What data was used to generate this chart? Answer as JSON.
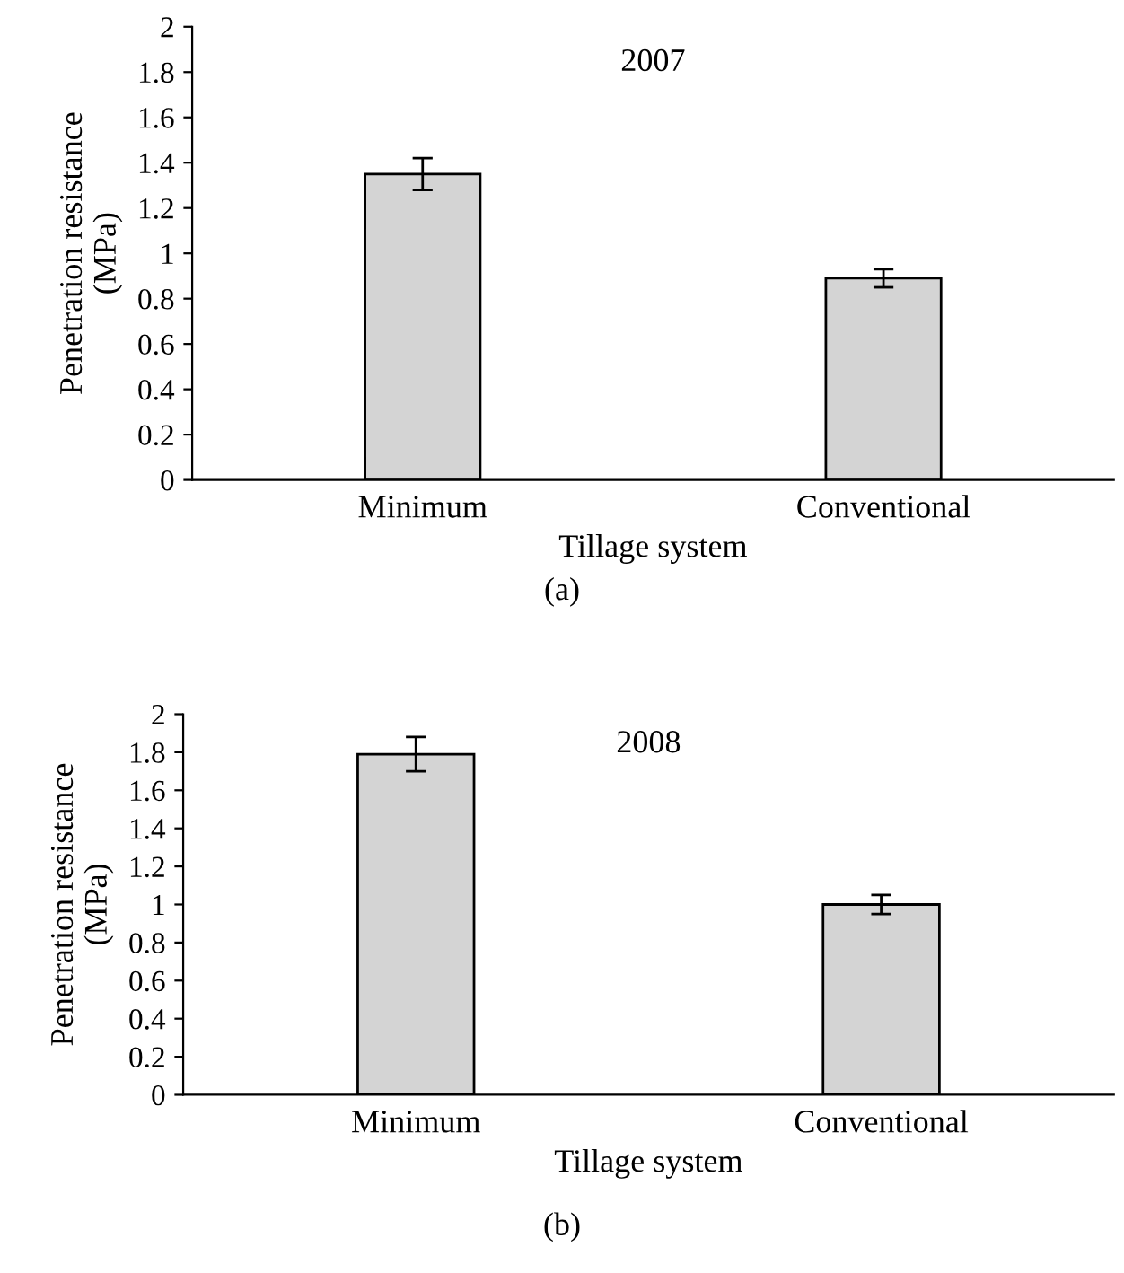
{
  "chart_data": [
    {
      "type": "bar",
      "title": "2007",
      "xlabel": "Tillage system",
      "ylabel": "Penetration resistance\n(MPa)",
      "categories": [
        "Minimum",
        "Conventional"
      ],
      "values": [
        1.35,
        0.89
      ],
      "errors": [
        0.07,
        0.04
      ],
      "color": "#d4d4d4",
      "ylim": [
        0,
        2
      ],
      "yticks": [
        0,
        0.2,
        0.4,
        0.6,
        0.8,
        1,
        1.2,
        1.4,
        1.6,
        1.8,
        2
      ],
      "grid": false,
      "annotations": [
        "(a)"
      ]
    },
    {
      "type": "bar",
      "title": "2008",
      "xlabel": "Tillage system",
      "ylabel": "Penetration resistance\n(MPa)",
      "categories": [
        "Minimum",
        "Conventional"
      ],
      "values": [
        1.79,
        1.0
      ],
      "errors": [
        0.09,
        0.05
      ],
      "color": "#d4d4d4",
      "ylim": [
        0,
        2
      ],
      "yticks": [
        0,
        0.2,
        0.4,
        0.6,
        0.8,
        1,
        1.2,
        1.4,
        1.6,
        1.8,
        2
      ],
      "grid": false,
      "annotations": [
        "(b)"
      ]
    }
  ]
}
